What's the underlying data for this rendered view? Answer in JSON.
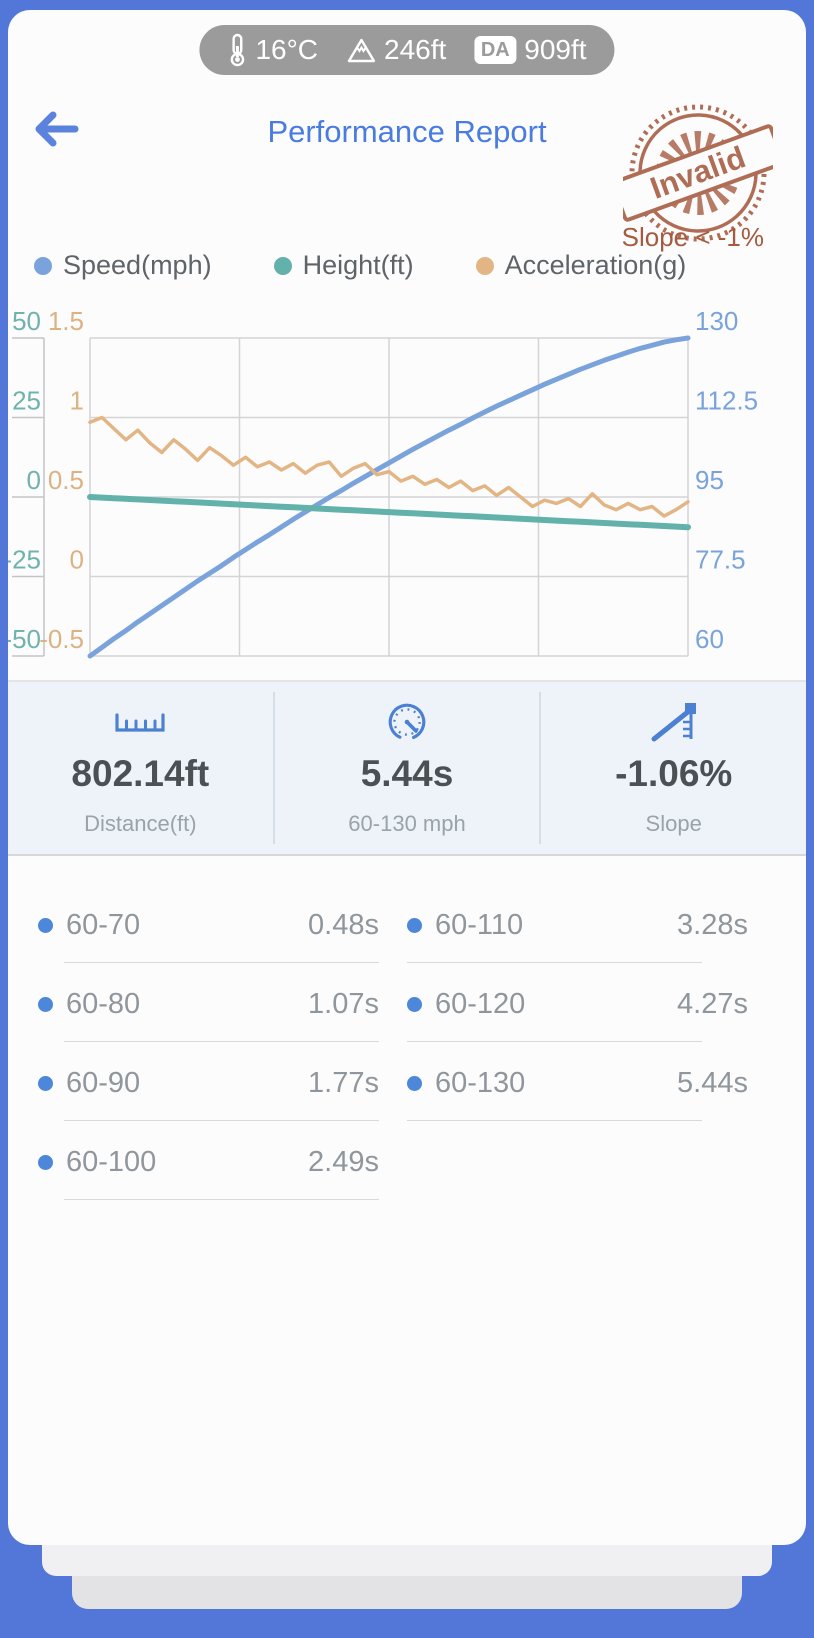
{
  "status_pill": {
    "temperature": "16°C",
    "altitude": "246ft",
    "da_label": "DA",
    "density_altitude": "909ft"
  },
  "header": {
    "title": "Performance Report",
    "stamp_text": "Invalid",
    "stamp_note": "Slope < -1%"
  },
  "legend": [
    {
      "label": "Speed(mph)",
      "color": "#7aa3dc"
    },
    {
      "label": "Height(ft)",
      "color": "#62b1ab"
    },
    {
      "label": "Acceleration(g)",
      "color": "#e3b585"
    }
  ],
  "chart_data": {
    "type": "line",
    "grid": {
      "rows": 4,
      "cols": 4
    },
    "grid_color": "#d4d4d6",
    "tick_color": "#c4c4c6",
    "axes": {
      "left_outer": {
        "label_for": "Height(ft)",
        "color": "#6fb3ae",
        "ticks": [
          "50",
          "25",
          "0",
          "-25",
          "-50"
        ],
        "range": [
          50,
          -50
        ]
      },
      "left_inner": {
        "label_for": "Acceleration(g)",
        "color": "#ddb282",
        "ticks": [
          "1.5",
          "1",
          "0.5",
          "0",
          "-0.5"
        ],
        "range": [
          1.5,
          -0.5
        ]
      },
      "right": {
        "label_for": "Speed(mph)",
        "color": "#7aa3dc",
        "ticks": [
          "130",
          "112.5",
          "95",
          "77.5",
          "60"
        ],
        "range": [
          130,
          60
        ]
      }
    },
    "series": [
      {
        "name": "Speed(mph)",
        "axis": "right",
        "color": "#7aa3dc",
        "width": 5,
        "y_range": [
          60,
          130
        ],
        "values": [
          60,
          61.9,
          63.8,
          65.6,
          67.5,
          69.3,
          71.1,
          72.9,
          74.7,
          76.5,
          78.2,
          79.9,
          81.7,
          83.4,
          85.1,
          86.7,
          88.4,
          90.1,
          91.7,
          93.3,
          94.9,
          96.4,
          98,
          99.5,
          101,
          102.5,
          104,
          105.5,
          106.9,
          108.3,
          109.7,
          111,
          112.4,
          113.7,
          115,
          116.2,
          117.4,
          118.6,
          119.8,
          120.9,
          122,
          123.1,
          124.1,
          125.1,
          126,
          126.9,
          127.7,
          128.4,
          129.1,
          129.6,
          130
        ]
      },
      {
        "name": "Height(ft)",
        "axis": "left_outer",
        "color": "#62b1ab",
        "width": 6,
        "y_range": [
          -50,
          50
        ],
        "values": [
          0,
          -0.19,
          -0.38,
          -0.57,
          -0.76,
          -0.95,
          -1.14,
          -1.33,
          -1.52,
          -1.71,
          -1.9,
          -2.09,
          -2.28,
          -2.47,
          -2.66,
          -2.85,
          -3.04,
          -3.23,
          -3.42,
          -3.61,
          -3.8,
          -3.99,
          -4.18,
          -4.37,
          -4.56,
          -4.75,
          -4.94,
          -5.13,
          -5.32,
          -5.51,
          -5.7,
          -5.89,
          -6.08,
          -6.27,
          -6.46,
          -6.65,
          -6.84,
          -7.03,
          -7.22,
          -7.41,
          -7.6,
          -7.79,
          -7.98,
          -8.17,
          -8.36,
          -8.55,
          -8.74,
          -8.93,
          -9.12,
          -9.31,
          -9.5
        ]
      },
      {
        "name": "Acceleration(g)",
        "axis": "left_inner",
        "color": "#e3b585",
        "width": 3.5,
        "y_range": [
          -0.5,
          1.5
        ],
        "values": [
          0.97,
          1.0,
          0.93,
          0.86,
          0.92,
          0.84,
          0.78,
          0.86,
          0.8,
          0.73,
          0.81,
          0.76,
          0.7,
          0.75,
          0.69,
          0.72,
          0.67,
          0.71,
          0.65,
          0.7,
          0.72,
          0.63,
          0.68,
          0.71,
          0.64,
          0.66,
          0.6,
          0.63,
          0.58,
          0.61,
          0.56,
          0.6,
          0.54,
          0.57,
          0.51,
          0.56,
          0.5,
          0.44,
          0.48,
          0.46,
          0.49,
          0.44,
          0.52,
          0.45,
          0.42,
          0.46,
          0.42,
          0.44,
          0.38,
          0.42,
          0.47
        ]
      }
    ]
  },
  "stats": [
    {
      "icon": "ruler-icon",
      "value": "802.14ft",
      "label": "Distance(ft)"
    },
    {
      "icon": "gauge-icon",
      "value": "5.44s",
      "label": "60-130 mph"
    },
    {
      "icon": "slope-icon",
      "value": "-1.06%",
      "label": "Slope"
    }
  ],
  "intervals": [
    {
      "label": "60-70",
      "time": "0.48s"
    },
    {
      "label": "60-80",
      "time": "1.07s"
    },
    {
      "label": "60-90",
      "time": "1.77s"
    },
    {
      "label": "60-100",
      "time": "2.49s"
    },
    {
      "label": "60-110",
      "time": "3.28s"
    },
    {
      "label": "60-120",
      "time": "4.27s"
    },
    {
      "label": "60-130",
      "time": "5.44s"
    }
  ],
  "colors": {
    "frame_blue": "#5277d8",
    "title_blue": "#4a7ce0",
    "stamp_brown": "#a65a3e",
    "stat_icon_blue": "#4c80d2",
    "panel_bg": "#eef3f9"
  }
}
